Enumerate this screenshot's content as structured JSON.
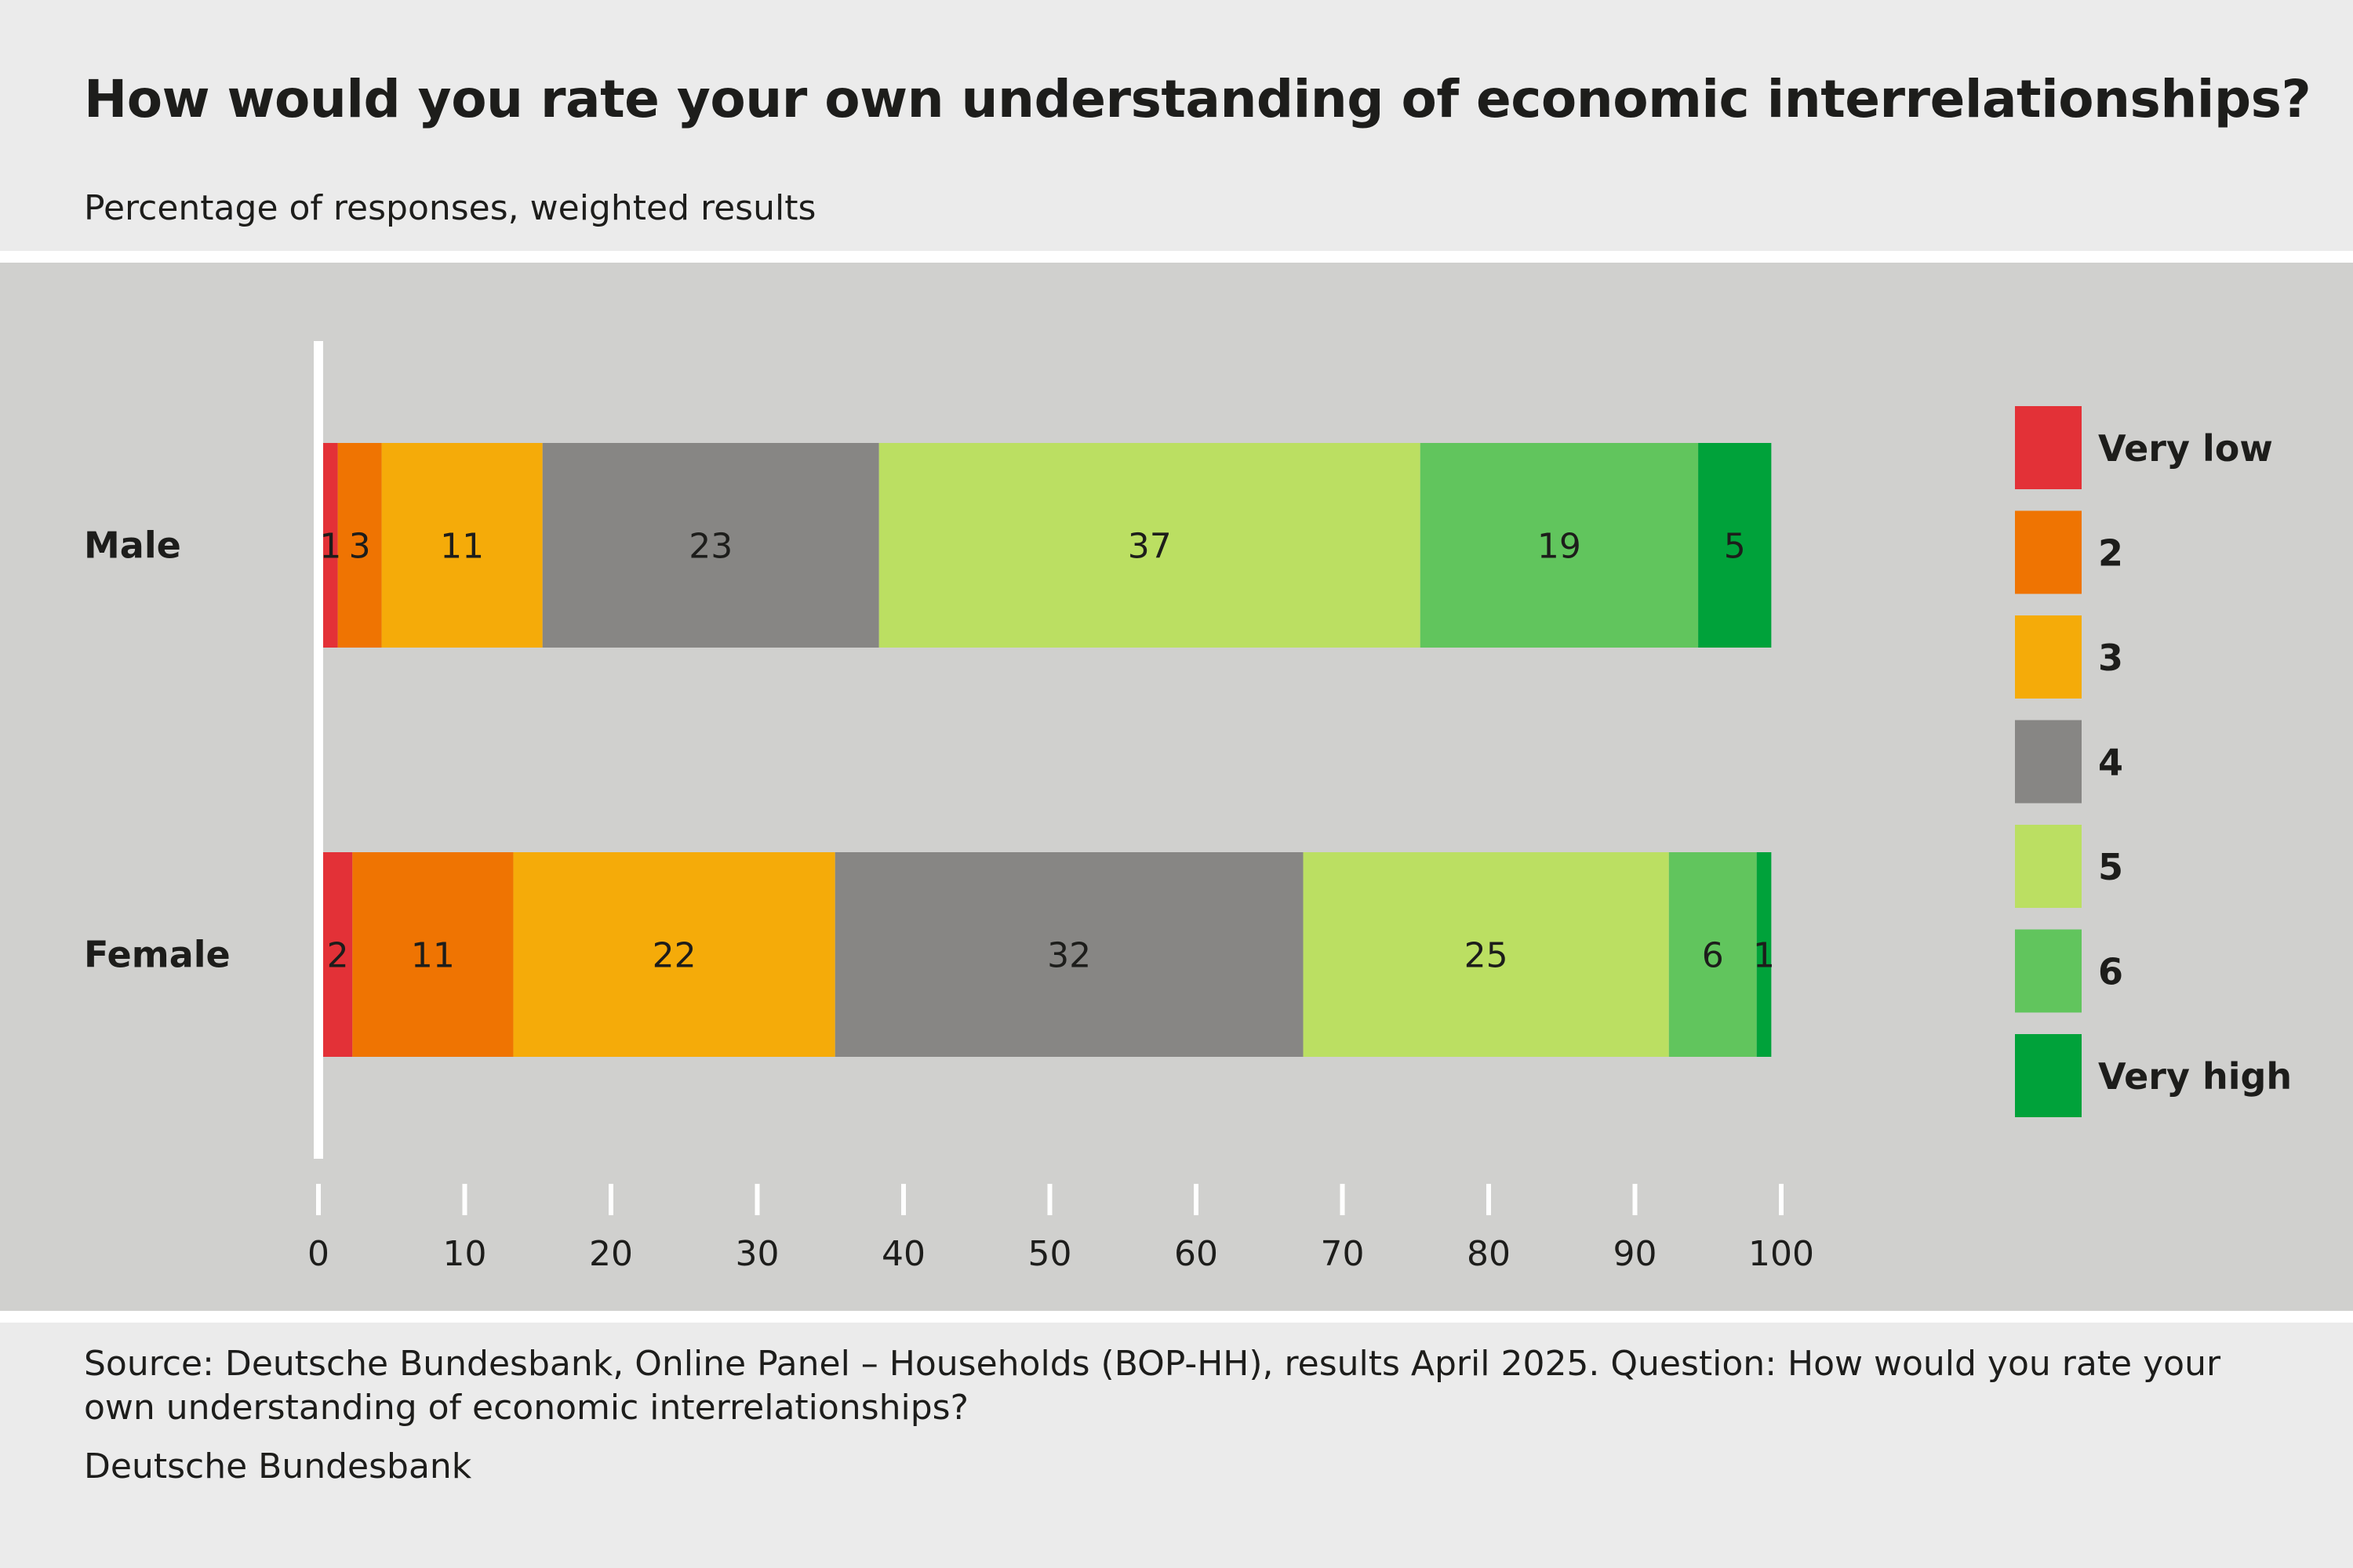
{
  "header": {
    "title": "How would you rate your own understanding of economic interrelationships?",
    "subtitle": "Percentage of responses, weighted results"
  },
  "footer": {
    "source": "Source: Deutsche Bundesbank, Online Panel – Households (BOP-HH), results April 2025. Question: How would you rate your own understanding of economic interrelationships?",
    "publisher": "Deutsche Bundesbank"
  },
  "chart_data": {
    "type": "bar",
    "orientation": "horizontal",
    "stacked": true,
    "title": "How would you rate your own understanding of economic interrelationships?",
    "subtitle": "Percentage of responses, weighted results",
    "categories": [
      "Male",
      "Female"
    ],
    "series": [
      {
        "name": "Very low",
        "color": "#e33137",
        "values": [
          1,
          2
        ]
      },
      {
        "name": "2",
        "color": "#ef7402",
        "values": [
          3,
          11
        ]
      },
      {
        "name": "3",
        "color": "#f5ab09",
        "values": [
          11,
          22
        ]
      },
      {
        "name": "4",
        "color": "#878684",
        "values": [
          23,
          32
        ]
      },
      {
        "name": "5",
        "color": "#bbdf62",
        "values": [
          37,
          25
        ]
      },
      {
        "name": "6",
        "color": "#61c55d",
        "values": [
          19,
          6
        ]
      },
      {
        "name": "Very high",
        "color": "#00a23a",
        "values": [
          5,
          1
        ]
      }
    ],
    "xlim": [
      0,
      100
    ],
    "xticks": [
      0,
      10,
      20,
      30,
      40,
      50,
      60,
      70,
      80,
      90,
      100
    ],
    "xlabel": "",
    "ylabel": "",
    "grid": false,
    "legend_position": "right",
    "data_labels": true
  }
}
